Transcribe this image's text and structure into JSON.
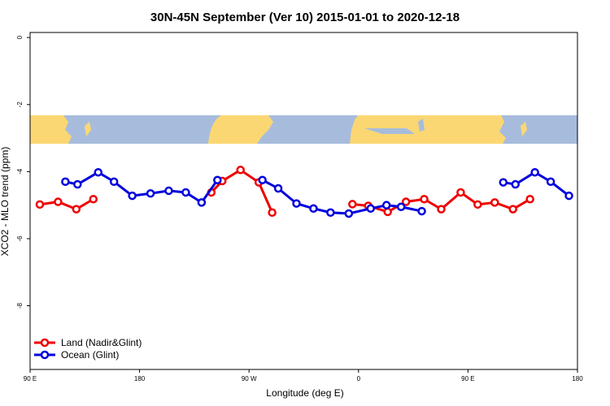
{
  "chart_data": {
    "type": "line",
    "title": "30N-45N September (Ver 10)   2015-01-01 to 2020-12-18",
    "xlabel": "Longitude (deg E)",
    "ylabel": "XCO2 - MLO trend (ppm)",
    "xlim": [
      90,
      540
    ],
    "ylim": [
      -9.9,
      0.15
    ],
    "xticks": [
      {
        "value": 90,
        "label": "90 E"
      },
      180,
      {
        "value": 270,
        "label": "90 W"
      },
      {
        "value": 360,
        "label": "0"
      },
      {
        "value": 450,
        "label": "90 E"
      },
      {
        "value": 540,
        "label": "180"
      }
    ],
    "yticks": [
      0,
      -2,
      -4,
      -6,
      -8
    ],
    "legend": "bottom-left",
    "series": [
      {
        "name": "Land (Nadir&Glint)",
        "color": "#ee0000",
        "x": [
          98,
          113,
          128,
          142,
          null,
          239,
          248,
          263,
          278,
          289,
          null,
          355,
          368,
          384,
          399,
          414,
          428,
          444,
          458,
          472,
          487,
          501
        ],
        "values": [
          -4.98,
          -4.9,
          -5.12,
          -4.82,
          null,
          -4.62,
          -4.28,
          -3.95,
          -4.32,
          -5.22,
          null,
          -4.97,
          -5.02,
          -5.2,
          -4.9,
          -4.82,
          -5.12,
          -4.62,
          -4.98,
          -4.92,
          -5.12,
          -4.82
        ]
      },
      {
        "name": "Ocean (Glint)",
        "color": "#0000dd",
        "x": [
          119,
          129,
          146,
          159,
          174,
          189,
          204,
          218,
          231,
          244,
          null,
          281,
          294,
          309,
          323,
          337,
          352,
          370,
          383,
          395,
          412,
          null,
          479,
          489,
          505,
          518,
          533
        ],
        "values": [
          -4.3,
          -4.38,
          -4.02,
          -4.3,
          -4.72,
          -4.65,
          -4.57,
          -4.62,
          -4.92,
          -4.25,
          null,
          -4.25,
          -4.5,
          -4.95,
          -5.1,
          -5.22,
          -5.25,
          -5.1,
          -5.0,
          -5.05,
          -5.18,
          null,
          -4.32,
          -4.38,
          -4.02,
          -4.3,
          -4.72
        ]
      }
    ]
  }
}
